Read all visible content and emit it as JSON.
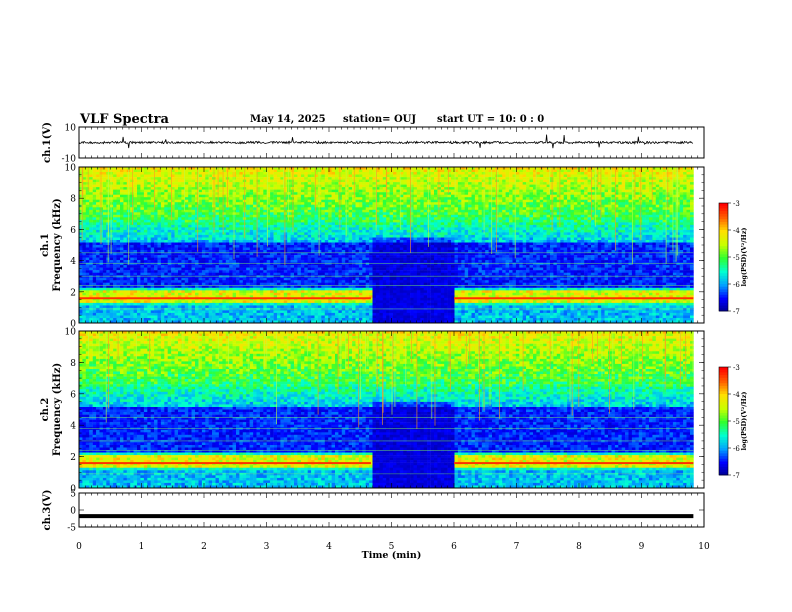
{
  "header": {
    "title": "VLF Spectra",
    "date": "May 14, 2025",
    "station": "station= OUJ",
    "start_ut": "start  UT  =   10: 0  : 0"
  },
  "chart_data": [
    {
      "type": "line",
      "panel": "ch1-waveform",
      "ylabel": "ch.1(V)",
      "yticks": [
        "10",
        "-10"
      ],
      "ylim": [
        -10,
        10
      ],
      "xlim": [
        0,
        10
      ],
      "baseline": 0,
      "noise": "spiky waveform, occasional impulses"
    },
    {
      "type": "heatmap",
      "panel": "ch1-spectrogram",
      "ylabel": "ch.1\nFrequency  (kHz)",
      "yticks": [
        "0",
        "2",
        "4",
        "6",
        "8",
        "10"
      ],
      "ylim": [
        0,
        10
      ],
      "xlim": [
        0,
        9.83
      ],
      "colorbar": {
        "label": "log(PSD)(V²/Hz)",
        "ticks": [
          "-3",
          "-4",
          "-5",
          "-6",
          "-7"
        ],
        "range": [
          -7,
          -3
        ]
      },
      "gap_interval_min": [
        4.67,
        6.0
      ]
    },
    {
      "type": "heatmap",
      "panel": "ch2-spectrogram",
      "ylabel": "ch.2\nFrequency  (kHz)",
      "yticks": [
        "0",
        "2",
        "4",
        "6",
        "8",
        "10"
      ],
      "ylim": [
        0,
        10
      ],
      "xlim": [
        0,
        9.83
      ],
      "colorbar": {
        "label": "log(PSD)(V²/Hz)",
        "ticks": [
          "-3",
          "-4",
          "-5",
          "-6",
          "-7"
        ],
        "range": [
          -7,
          -3
        ]
      },
      "gap_interval_min": [
        4.67,
        6.0
      ]
    },
    {
      "type": "line",
      "panel": "ch3-waveform",
      "ylabel": "ch.3(V)",
      "yticks": [
        "5",
        "0",
        "-5"
      ],
      "ylim": [
        -5,
        5
      ],
      "xlim": [
        0,
        9.83
      ],
      "constant_value": -1.8
    }
  ],
  "xaxis": {
    "label": "Time  (min)",
    "ticks": [
      "0",
      "1",
      "2",
      "3",
      "4",
      "5",
      "6",
      "7",
      "8",
      "9",
      "10"
    ],
    "range": [
      0,
      10
    ]
  },
  "colormap": [
    "#00008b",
    "#0000ff",
    "#00a0ff",
    "#00ffd0",
    "#30ff30",
    "#c8ff00",
    "#ffe000",
    "#ff6000",
    "#ff0000",
    "#ffffff"
  ]
}
